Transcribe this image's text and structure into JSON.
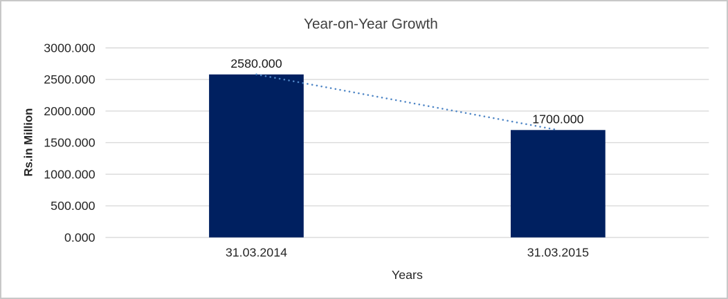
{
  "chart_data": {
    "type": "bar",
    "title": "Year-on-Year Growth",
    "xlabel": "Years",
    "ylabel": "Rs.in Million",
    "categories": [
      "31.03.2014",
      "31.03.2015"
    ],
    "values": [
      2580,
      1700
    ],
    "data_labels": [
      "2580.000",
      "1700.000"
    ],
    "ylim": [
      0,
      3000
    ],
    "ytick_step": 500,
    "ytick_labels": [
      "0.000",
      "500.000",
      "1000.000",
      "1500.000",
      "2000.000",
      "2500.000",
      "3000.000"
    ],
    "grid": true,
    "legend": "none",
    "trendline": {
      "type": "linear",
      "style": "dotted",
      "color": "#4f86c6",
      "connects": [
        "bar-top-1",
        "bar-top-2"
      ]
    },
    "colors": {
      "bar": "#002060",
      "gridline": "#d9d9d9",
      "text": "#262626",
      "frame_border": "#c8c8c8",
      "background": "#ffffff"
    }
  }
}
